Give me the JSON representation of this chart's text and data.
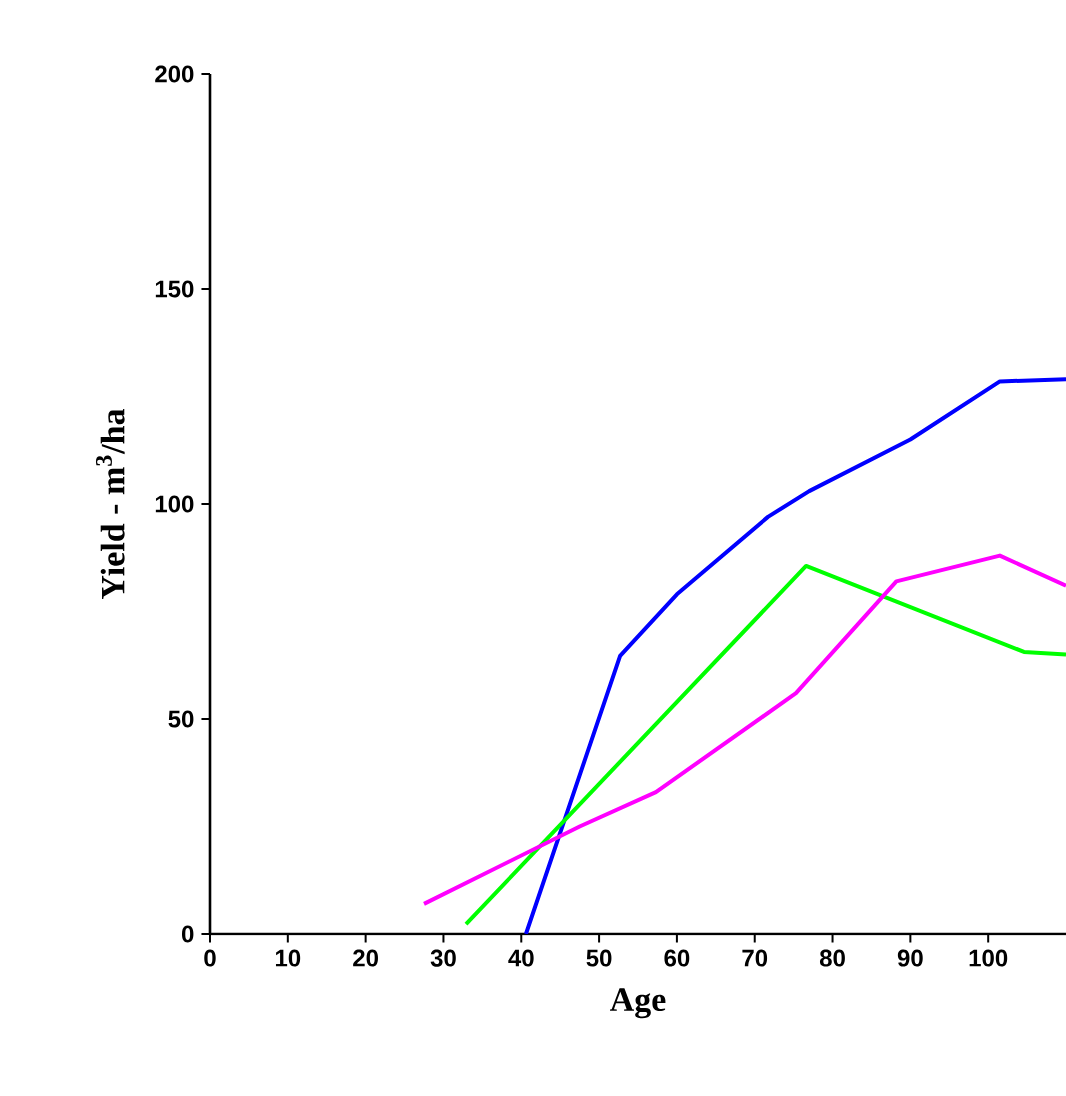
{
  "chart_data": {
    "type": "line",
    "xlabel": "Age",
    "ylabel": "Yield - m$^{3}$/ha",
    "xlim": [
      0,
      110
    ],
    "ylim": [
      0,
      200
    ],
    "xticks": [
      0,
      10,
      20,
      30,
      40,
      50,
      60,
      70,
      80,
      90,
      100
    ],
    "yticks": [
      0,
      50,
      100,
      150,
      200
    ],
    "marker": "none",
    "line_style": "solid",
    "series": [
      {
        "color": "#0000ff",
        "x": [
          40.6,
          52.7,
          60,
          71.7,
          77,
          90,
          101.5,
          110
        ],
        "values": [
          0,
          64.7,
          79,
          97,
          103,
          115,
          128.5,
          129
        ]
      },
      {
        "color": "#00ff00",
        "x": [
          32.9,
          76.6,
          104.6,
          110
        ],
        "values": [
          2.3,
          85.6,
          65.6,
          65
        ]
      },
      {
        "color": "#ff00ff",
        "x": [
          27.5,
          47.5,
          57.3,
          75.3,
          88.2,
          101.5,
          110
        ],
        "values": [
          7,
          25,
          33,
          56,
          82,
          88,
          81
        ]
      }
    ]
  }
}
